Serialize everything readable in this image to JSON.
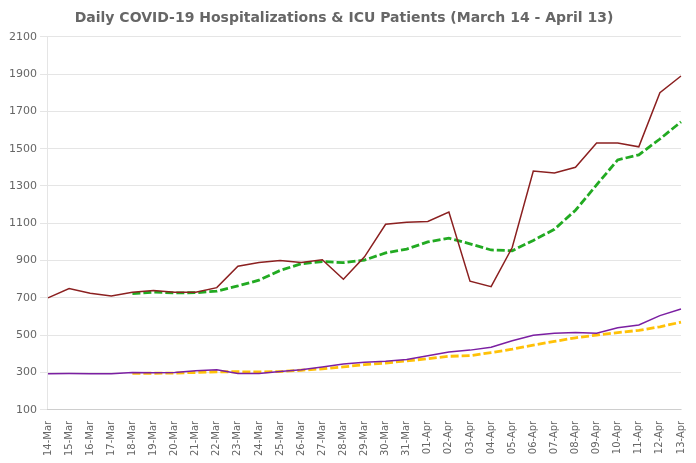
{
  "chart_data": {
    "type": "line",
    "title": "Daily COVID-19 Hospitalizations & ICU Patients (March 14 - April 13)",
    "categories": [
      "14-Mar",
      "15-Mar",
      "16-Mar",
      "17-Mar",
      "18-Mar",
      "19-Mar",
      "20-Mar",
      "21-Mar",
      "22-Mar",
      "23-Mar",
      "24-Mar",
      "25-Mar",
      "26-Mar",
      "27-Mar",
      "28-Mar",
      "29-Mar",
      "30-Mar",
      "31-Mar",
      "01-Apr",
      "02-Apr",
      "03-Apr",
      "04-Apr",
      "05-Apr",
      "06-Apr",
      "07-Apr",
      "08-Apr",
      "09-Apr",
      "10-Apr",
      "11-Apr",
      "12-Apr",
      "13-Apr"
    ],
    "series": [
      {
        "color": "#8B2020",
        "line_style": "solid",
        "values": [
          700,
          750,
          725,
          710,
          730,
          740,
          730,
          730,
          755,
          870,
          890,
          900,
          890,
          905,
          800,
          920,
          1095,
          1105,
          1110,
          1160,
          790,
          760,
          970,
          1380,
          1370,
          1400,
          1530,
          1530,
          1510,
          1800,
          1890
        ]
      },
      {
        "color": "#22AA22",
        "line_style": "dashed",
        "values": [
          null,
          null,
          null,
          null,
          723,
          731,
          727,
          728,
          736,
          764,
          795,
          847,
          883,
          895,
          889,
          903,
          941,
          962,
          1000,
          1020,
          990,
          957,
          953,
          1008,
          1068,
          1170,
          1306,
          1440,
          1467,
          1552,
          1644
        ]
      },
      {
        "color": "#7B1FA2",
        "line_style": "solid",
        "values": [
          293,
          294,
          293,
          293,
          300,
          298,
          300,
          310,
          315,
          295,
          295,
          305,
          315,
          330,
          345,
          355,
          360,
          370,
          390,
          410,
          420,
          435,
          470,
          500,
          510,
          515,
          510,
          540,
          555,
          605,
          640
        ]
      },
      {
        "color": "#FFC107",
        "line_style": "dashed",
        "values": [
          null,
          null,
          null,
          null,
          295,
          296,
          297,
          300,
          304,
          304,
          303,
          305,
          312,
          320,
          330,
          342,
          351,
          362,
          374,
          387,
          390,
          407,
          425,
          447,
          467,
          486,
          501,
          514,
          526,
          545,
          570
        ]
      }
    ],
    "ylim": [
      100,
      2100
    ],
    "yticks": [
      100,
      300,
      500,
      700,
      900,
      1100,
      1300,
      1500,
      1700,
      1900,
      2100
    ],
    "grid": "y"
  }
}
